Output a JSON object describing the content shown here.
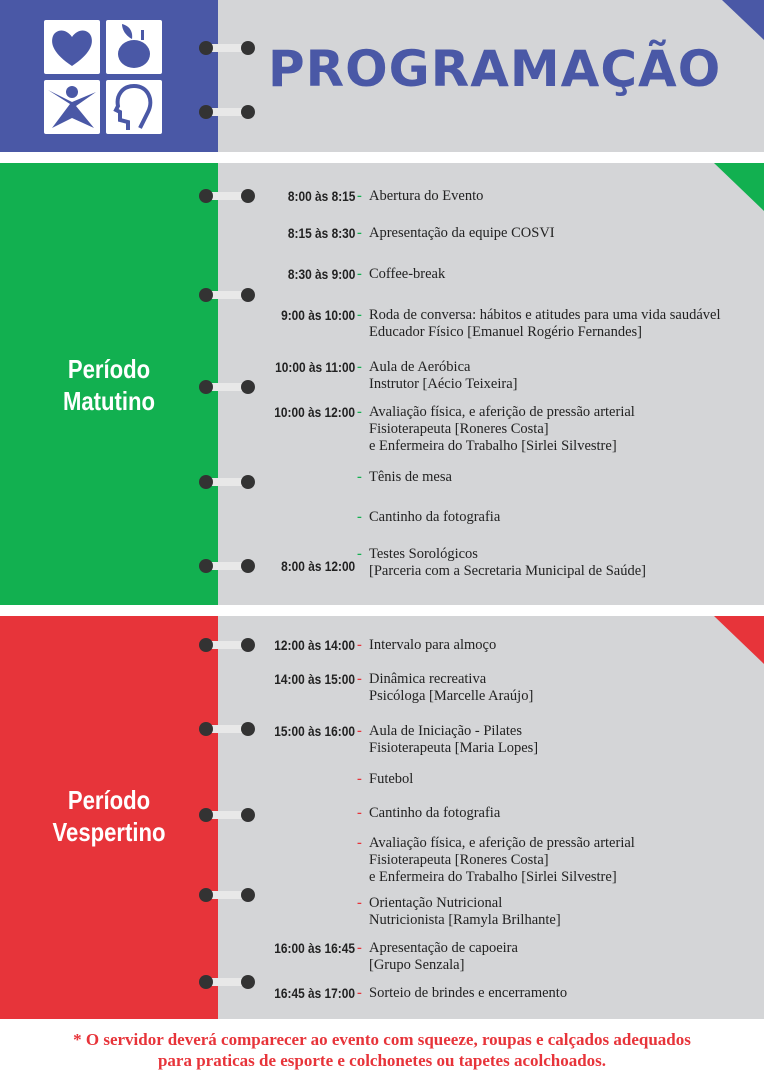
{
  "colors": {
    "header": "#4a58a6",
    "morning": "#12b050",
    "afternoon": "#e7343a",
    "page": "#d4d5d7"
  },
  "header": {
    "title": "PROGRAMAÇÃO",
    "logo_icons": [
      "heart-icon",
      "apple-icon",
      "person-icon",
      "head-hands-icon"
    ]
  },
  "morning": {
    "label1": "Período",
    "label2": "Matutino",
    "items": [
      {
        "time": "8:00 às 8:15",
        "lines": [
          "Abertura do Evento"
        ]
      },
      {
        "time": "8:15 às 8:30",
        "lines": [
          "Apresentação da equipe COSVI"
        ]
      },
      {
        "time": "8:30 às 9:00",
        "lines": [
          "Coffee-break"
        ]
      },
      {
        "time": "9:00 às 10:00",
        "lines": [
          "Roda de conversa: hábitos e atitudes para uma vida saudável",
          "Educador Físico [Emanuel Rogério Fernandes]"
        ]
      },
      {
        "time": "10:00 às 11:00",
        "lines": [
          "Aula de Aeróbica",
          "Instrutor [Aécio Teixeira]"
        ]
      },
      {
        "time": "10:00 às 12:00",
        "lines": [
          "Avaliação física, e aferição de pressão arterial",
          "Fisioterapeuta [Roneres Costa]",
          "e Enfermeira do Trabalho [Sirlei Silvestre]"
        ]
      },
      {
        "time": "",
        "lines": [
          "Tênis de mesa"
        ]
      },
      {
        "time": "",
        "lines": [
          "Cantinho da fotografia"
        ]
      },
      {
        "time": "8:00 às 12:00",
        "lines": [
          "Testes Sorológicos",
          "[Parceria com a Secretaria Municipal de Saúde]"
        ]
      }
    ]
  },
  "afternoon": {
    "label1": "Período",
    "label2": "Vespertino",
    "items": [
      {
        "time": "12:00 às 14:00",
        "lines": [
          "Intervalo para almoço"
        ]
      },
      {
        "time": "14:00 às 15:00",
        "lines": [
          "Dinâmica recreativa",
          "Psicóloga [Marcelle Araújo]"
        ]
      },
      {
        "time": "15:00 às 16:00",
        "lines": [
          "Aula de Iniciação - Pilates",
          "Fisioterapeuta [Maria Lopes]"
        ]
      },
      {
        "time": "",
        "lines": [
          "Futebol"
        ]
      },
      {
        "time": "",
        "lines": [
          "Cantinho da fotografia"
        ]
      },
      {
        "time": "",
        "lines": [
          "Avaliação física, e aferição de pressão arterial",
          "Fisioterapeuta [Roneres Costa]",
          "e Enfermeira do Trabalho [Sirlei Silvestre]"
        ]
      },
      {
        "time": "",
        "lines": [
          "Orientação Nutricional",
          "Nutricionista [Ramyla Brilhante]"
        ]
      },
      {
        "time": "16:00 às 16:45",
        "lines": [
          "Apresentação de capoeira",
          "[Grupo Senzala]"
        ]
      },
      {
        "time": "16:45 às 17:00",
        "lines": [
          "Sorteio de brindes e encerramento"
        ]
      }
    ]
  },
  "footer": {
    "line1": "* O servidor deverá comparecer ao evento com squeeze, roupas e calçados adequados",
    "line2": "para praticas de esporte e colchonetes ou tapetes acolchoados."
  }
}
